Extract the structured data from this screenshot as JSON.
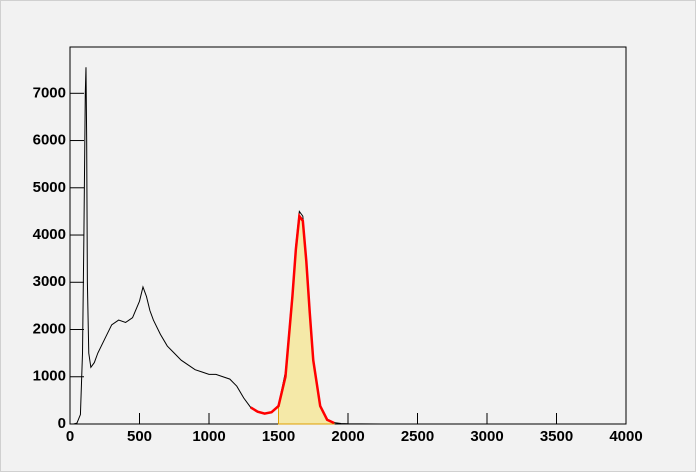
{
  "chart_data": {
    "type": "line",
    "x": [
      0,
      25,
      50,
      75,
      90,
      100,
      110,
      115,
      120,
      125,
      135,
      150,
      175,
      200,
      250,
      300,
      350,
      400,
      450,
      500,
      525,
      550,
      575,
      600,
      650,
      700,
      750,
      800,
      850,
      900,
      950,
      1000,
      1050,
      1100,
      1150,
      1200,
      1250,
      1300,
      1350,
      1400,
      1450,
      1500,
      1550,
      1600,
      1625,
      1650,
      1675,
      1700,
      1725,
      1750,
      1800,
      1850,
      1900,
      1950,
      2000,
      2100,
      2500,
      3000,
      3500,
      4000
    ],
    "series": [
      {
        "color": "#f5e9a8",
        "area": true,
        "values": [
          null,
          null,
          null,
          null,
          null,
          null,
          null,
          null,
          null,
          null,
          null,
          null,
          null,
          null,
          null,
          null,
          null,
          null,
          null,
          null,
          null,
          null,
          null,
          null,
          null,
          null,
          null,
          null,
          null,
          null,
          null,
          null,
          null,
          null,
          null,
          null,
          null,
          null,
          null,
          null,
          null,
          380,
          1000,
          2700,
          3700,
          4400,
          4300,
          3450,
          2350,
          1350,
          380,
          90,
          20,
          null,
          null,
          null,
          null,
          null,
          null,
          null
        ]
      },
      {
        "color": "#000000",
        "values": [
          0,
          0,
          20,
          200,
          1500,
          4000,
          7000,
          7550,
          6000,
          3000,
          1500,
          1200,
          1300,
          1500,
          1800,
          2100,
          2200,
          2150,
          2250,
          2600,
          2900,
          2700,
          2400,
          2200,
          1900,
          1650,
          1500,
          1350,
          1250,
          1150,
          1100,
          1050,
          1050,
          1000,
          950,
          800,
          550,
          350,
          250,
          220,
          250,
          400,
          1100,
          2800,
          3800,
          4500,
          4400,
          3500,
          2400,
          1400,
          400,
          100,
          30,
          10,
          5,
          2,
          0,
          0,
          0,
          0
        ]
      },
      {
        "color": "#ff0000",
        "values": [
          null,
          null,
          null,
          null,
          null,
          null,
          null,
          null,
          null,
          null,
          null,
          null,
          null,
          null,
          null,
          null,
          null,
          null,
          null,
          null,
          null,
          null,
          null,
          null,
          null,
          null,
          null,
          null,
          null,
          null,
          null,
          null,
          null,
          null,
          null,
          null,
          null,
          350,
          260,
          220,
          250,
          380,
          1000,
          2700,
          3700,
          4400,
          4300,
          3450,
          2350,
          1350,
          380,
          90,
          20,
          null,
          null,
          null,
          null,
          null,
          null,
          null
        ]
      }
    ],
    "xlim": [
      0,
      4000
    ],
    "xticks": [
      0,
      500,
      1000,
      1500,
      2000,
      2500,
      3000,
      3500,
      4000
    ],
    "ylim": [
      0,
      7980
    ],
    "yticks": [
      0,
      1000,
      2000,
      3000,
      4000,
      5000,
      6000,
      7000
    ]
  }
}
